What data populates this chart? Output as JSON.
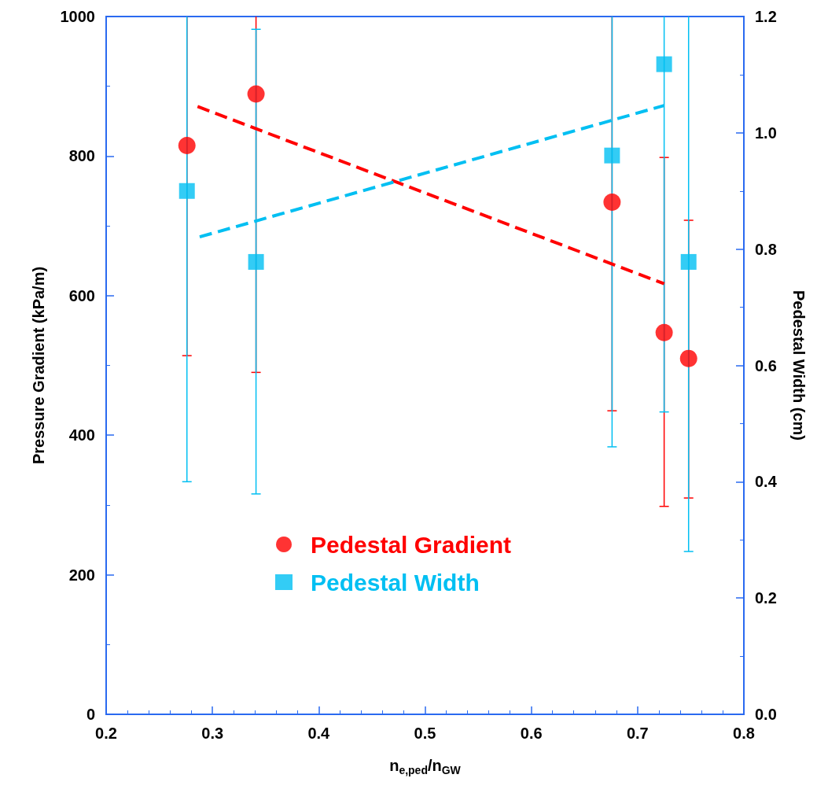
{
  "chart_data": {
    "type": "scatter",
    "xlabel": "n$_{e,ped}$/n$_{GW}$",
    "ylabel": "Pressure Gradient (kPa/m)",
    "y2label": "Pedestal Width (cm)",
    "xlim": [
      0.2,
      0.8
    ],
    "xticks": [
      0.2,
      0.3,
      0.4,
      0.5,
      0.6,
      0.7,
      0.8
    ],
    "ylim": [
      0,
      1000
    ],
    "yticks": [
      0,
      200,
      400,
      600,
      800,
      1000
    ],
    "y2lim": [
      0,
      1.2
    ],
    "y2ticks": [
      {
        "value": 0,
        "label": "0.0"
      },
      0.2,
      0.4,
      0.6,
      0.8,
      {
        "value": 1,
        "label": "1.0"
      },
      1.2
    ],
    "grid": false,
    "legend": "bottom",
    "series": [
      {
        "name": "Pedestal Gradient",
        "marker": "circle",
        "color": "#ff0000",
        "x": [
          0.276,
          0.341,
          0.676,
          0.725,
          0.748
        ],
        "values": [
          815,
          889,
          734,
          547,
          510
        ],
        "errors": [
          [
            514,
            1000
          ],
          [
            490,
            1000
          ],
          [
            435,
            1000
          ],
          [
            298,
            798
          ],
          [
            310,
            708
          ]
        ]
      },
      {
        "name": "Pedestal Width",
        "marker": "square",
        "axis": "y2",
        "color": "#00bff2",
        "x": [
          0.276,
          0.341,
          0.676,
          0.725,
          0.748
        ],
        "values": [
          0.9,
          0.778,
          0.961,
          1.118,
          0.778
        ],
        "errors": [
          [
            0.4,
            1.2
          ],
          [
            0.379,
            1.178
          ],
          [
            0.46,
            1.2
          ],
          [
            0.52,
            1.2
          ],
          [
            0.28,
            1.2
          ]
        ]
      },
      {
        "type": "line",
        "line_style": "dashed",
        "marker": "none",
        "color": "#ff0000",
        "x": [
          0.286,
          0.725
        ],
        "values": [
          871,
          617
        ]
      },
      {
        "type": "line",
        "line_style": "dashed",
        "marker": "none",
        "axis": "y2",
        "color": "#00bff2",
        "x": [
          0.288,
          0.725
        ],
        "values": [
          0.821,
          1.047
        ]
      }
    ]
  }
}
